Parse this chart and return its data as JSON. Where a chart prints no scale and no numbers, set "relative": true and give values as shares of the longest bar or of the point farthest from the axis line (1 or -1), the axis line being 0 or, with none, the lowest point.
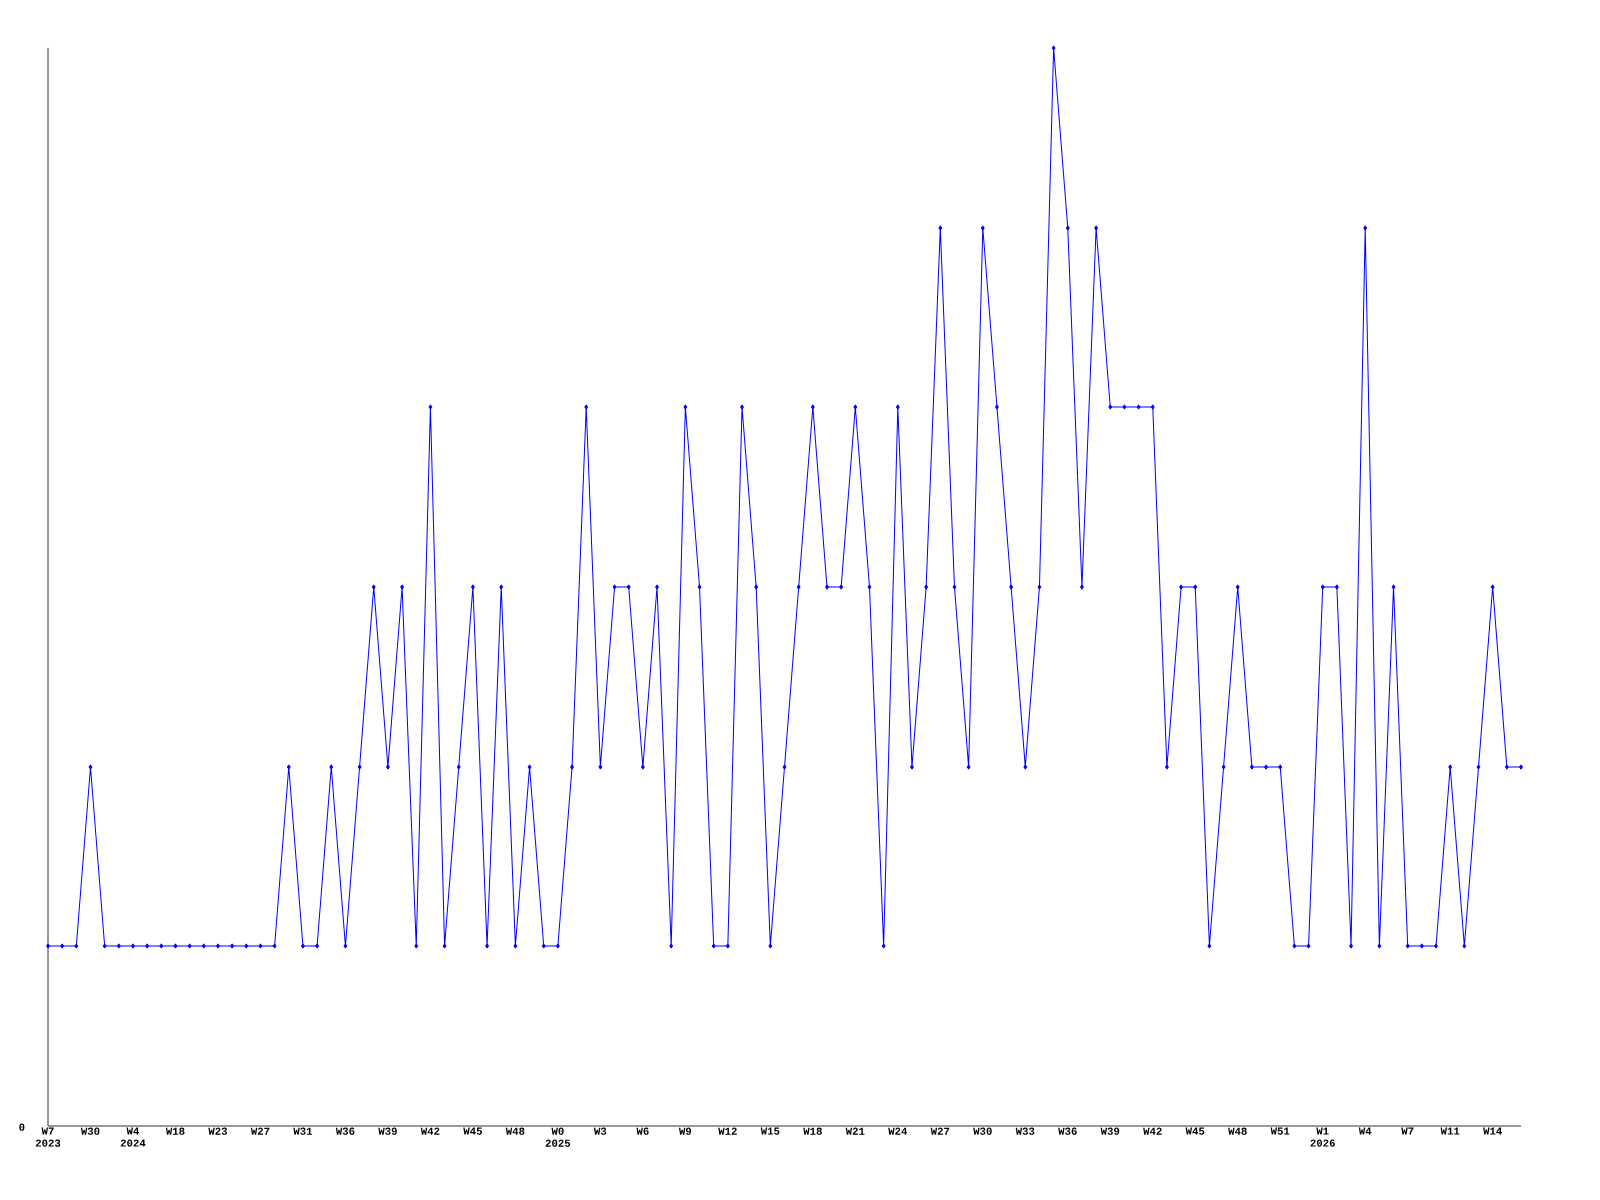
{
  "chart_data": {
    "type": "line",
    "relative": true,
    "marker": "diamond",
    "line_style": "solid",
    "annotations": [
      "0"
    ],
    "categories": [
      "W7 2023",
      null,
      null,
      "W30",
      null,
      null,
      "W4 2024",
      null,
      null,
      "W18",
      null,
      null,
      "W23",
      null,
      null,
      "W27",
      null,
      null,
      "W31",
      null,
      null,
      "W36",
      null,
      null,
      "W39",
      null,
      null,
      "W42",
      null,
      null,
      "W45",
      null,
      null,
      "W48",
      null,
      null,
      "W0 2025",
      null,
      null,
      "W3",
      null,
      null,
      "W6",
      null,
      null,
      "W9",
      null,
      null,
      "W12",
      null,
      null,
      "W15",
      null,
      null,
      "W18",
      null,
      null,
      "W21",
      null,
      null,
      "W24",
      null,
      null,
      "W27",
      null,
      null,
      "W30",
      null,
      null,
      "W33",
      null,
      null,
      "W36",
      null,
      null,
      "W39",
      null,
      null,
      "W42",
      null,
      null,
      "W45",
      null,
      null,
      "W48",
      null,
      null,
      "W51",
      null,
      null,
      "W1 2026",
      null,
      null,
      "W4",
      null,
      null,
      "W7",
      null,
      null,
      "W11",
      null,
      null,
      "W14",
      null,
      null
    ],
    "series": [
      {
        "color": "#0000ff",
        "values": [
          0.167,
          0.167,
          0.167,
          0.333,
          0.167,
          0.167,
          0.167,
          0.167,
          0.167,
          0.167,
          0.167,
          0.167,
          0.167,
          0.167,
          0.167,
          0.167,
          0.167,
          0.333,
          0.167,
          0.167,
          0.333,
          0.167,
          0.333,
          0.5,
          0.333,
          0.5,
          0.167,
          0.667,
          0.167,
          0.333,
          0.5,
          0.167,
          0.5,
          0.167,
          0.333,
          0.167,
          0.167,
          0.333,
          0.667,
          0.333,
          0.5,
          0.5,
          0.333,
          0.5,
          0.167,
          0.667,
          0.5,
          0.167,
          0.167,
          0.667,
          0.5,
          0.167,
          0.333,
          0.5,
          0.667,
          0.5,
          0.5,
          0.667,
          0.5,
          0.167,
          0.667,
          0.333,
          0.5,
          0.833,
          0.5,
          0.333,
          0.833,
          0.667,
          0.5,
          0.333,
          0.5,
          1,
          0.833,
          0.5,
          0.833,
          0.667,
          0.667,
          0.667,
          0.667,
          0.333,
          0.5,
          0.5,
          0.167,
          0.333,
          0.5,
          0.333,
          0.333,
          0.333,
          0.167,
          0.167,
          0.5,
          0.5,
          0.167,
          0.833,
          0.167,
          0.5,
          0.167,
          0.167,
          0.167,
          0.333,
          0.167,
          0.333,
          0.5,
          0.333,
          0.333
        ]
      }
    ]
  }
}
